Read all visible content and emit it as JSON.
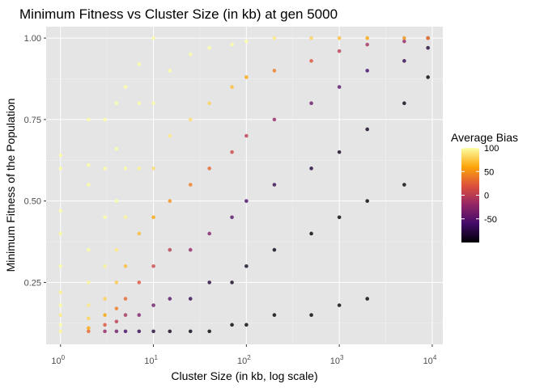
{
  "chart_data": {
    "type": "scatter",
    "title": "Minimum Fitness vs Cluster Size (in kb) at gen 5000",
    "xlabel": "Cluster Size (in kb, log scale)",
    "ylabel": "Minimum Fitness of the Population",
    "x_scale": "log10",
    "xlim": [
      0.7,
      13000
    ],
    "ylim": [
      0.06,
      1.035
    ],
    "x_ticks": [
      {
        "value": 1,
        "base": "10",
        "exp": "0"
      },
      {
        "value": 10,
        "base": "10",
        "exp": "1"
      },
      {
        "value": 100,
        "base": "10",
        "exp": "2"
      },
      {
        "value": 1000,
        "base": "10",
        "exp": "3"
      },
      {
        "value": 10000,
        "base": "10",
        "exp": "4"
      }
    ],
    "y_ticks": [
      {
        "value": 0.25,
        "label": "0.25"
      },
      {
        "value": 0.5,
        "label": "0.50"
      },
      {
        "value": 0.75,
        "label": "0.75"
      },
      {
        "value": 1.0,
        "label": "1.00"
      }
    ],
    "grid": true,
    "colorbar": {
      "title": "Average Bias",
      "min": -100,
      "max": 100,
      "ticks": [
        {
          "value": 100,
          "label": "100"
        },
        {
          "value": 50,
          "label": "50"
        },
        {
          "value": 0,
          "label": "0"
        },
        {
          "value": -50,
          "label": "-50"
        }
      ],
      "colors": [
        "#000004",
        "#420a68",
        "#932667",
        "#dd513a",
        "#fca50a",
        "#fcffa4"
      ],
      "placement": "right"
    },
    "point_color_note": "dense scatter; values below are a representative sample (x in kb, y fitness, c average bias)",
    "points": [
      [
        1,
        0.1,
        95
      ],
      [
        1,
        0.12,
        100
      ],
      [
        1,
        0.15,
        90
      ],
      [
        1,
        0.18,
        98
      ],
      [
        1,
        0.22,
        92
      ],
      [
        1,
        0.3,
        100
      ],
      [
        1,
        0.4,
        97
      ],
      [
        1,
        0.47,
        100
      ],
      [
        1,
        0.6,
        100
      ],
      [
        1,
        0.64,
        100
      ],
      [
        2,
        0.1,
        30
      ],
      [
        2,
        0.11,
        60
      ],
      [
        2,
        0.14,
        80
      ],
      [
        2,
        0.18,
        90
      ],
      [
        2,
        0.25,
        95
      ],
      [
        2,
        0.35,
        100
      ],
      [
        2,
        0.55,
        100
      ],
      [
        2,
        0.61,
        100
      ],
      [
        2,
        0.75,
        100
      ],
      [
        3,
        0.1,
        -20
      ],
      [
        3,
        0.12,
        20
      ],
      [
        3,
        0.15,
        60
      ],
      [
        3,
        0.2,
        80
      ],
      [
        3,
        0.3,
        95
      ],
      [
        3,
        0.45,
        100
      ],
      [
        3,
        0.6,
        100
      ],
      [
        3,
        0.75,
        100
      ],
      [
        4,
        0.1,
        -40
      ],
      [
        4,
        0.13,
        0
      ],
      [
        4,
        0.17,
        40
      ],
      [
        4,
        0.25,
        75
      ],
      [
        4,
        0.35,
        90
      ],
      [
        4,
        0.5,
        100
      ],
      [
        4,
        0.66,
        100
      ],
      [
        4,
        0.8,
        100
      ],
      [
        5,
        0.1,
        -60
      ],
      [
        5,
        0.15,
        -10
      ],
      [
        5,
        0.2,
        30
      ],
      [
        5,
        0.3,
        70
      ],
      [
        5,
        0.45,
        95
      ],
      [
        5,
        0.6,
        100
      ],
      [
        5,
        0.85,
        100
      ],
      [
        7,
        0.1,
        -70
      ],
      [
        7,
        0.15,
        -30
      ],
      [
        7,
        0.25,
        20
      ],
      [
        7,
        0.4,
        70
      ],
      [
        7,
        0.6,
        95
      ],
      [
        7,
        0.8,
        100
      ],
      [
        7,
        0.92,
        100
      ],
      [
        10,
        0.1,
        -80
      ],
      [
        10,
        0.18,
        -40
      ],
      [
        10,
        0.3,
        10
      ],
      [
        10,
        0.45,
        60
      ],
      [
        10,
        0.6,
        85
      ],
      [
        10,
        0.8,
        100
      ],
      [
        10,
        1.0,
        100
      ],
      [
        15,
        0.1,
        -90
      ],
      [
        15,
        0.2,
        -50
      ],
      [
        15,
        0.35,
        0
      ],
      [
        15,
        0.5,
        50
      ],
      [
        15,
        0.7,
        90
      ],
      [
        15,
        0.9,
        100
      ],
      [
        25,
        0.1,
        -95
      ],
      [
        25,
        0.2,
        -70
      ],
      [
        25,
        0.35,
        -20
      ],
      [
        25,
        0.55,
        40
      ],
      [
        25,
        0.75,
        85
      ],
      [
        25,
        0.95,
        100
      ],
      [
        40,
        0.1,
        -100
      ],
      [
        40,
        0.25,
        -80
      ],
      [
        40,
        0.4,
        -30
      ],
      [
        40,
        0.6,
        30
      ],
      [
        40,
        0.8,
        80
      ],
      [
        40,
        0.97,
        100
      ],
      [
        70,
        0.12,
        -100
      ],
      [
        70,
        0.25,
        -90
      ],
      [
        70,
        0.45,
        -50
      ],
      [
        70,
        0.65,
        10
      ],
      [
        70,
        0.85,
        70
      ],
      [
        70,
        0.98,
        100
      ],
      [
        100,
        0.12,
        -100
      ],
      [
        100,
        0.3,
        -90
      ],
      [
        100,
        0.5,
        -60
      ],
      [
        100,
        0.7,
        0
      ],
      [
        100,
        0.88,
        60
      ],
      [
        100,
        0.99,
        100
      ],
      [
        200,
        0.15,
        -100
      ],
      [
        200,
        0.35,
        -95
      ],
      [
        200,
        0.55,
        -70
      ],
      [
        200,
        0.75,
        -20
      ],
      [
        200,
        0.9,
        40
      ],
      [
        200,
        1.0,
        90
      ],
      [
        500,
        0.15,
        -100
      ],
      [
        500,
        0.4,
        -100
      ],
      [
        500,
        0.6,
        -80
      ],
      [
        500,
        0.8,
        -40
      ],
      [
        500,
        0.93,
        20
      ],
      [
        500,
        1.0,
        80
      ],
      [
        1000,
        0.18,
        -100
      ],
      [
        1000,
        0.45,
        -100
      ],
      [
        1000,
        0.65,
        -90
      ],
      [
        1000,
        0.85,
        -50
      ],
      [
        1000,
        0.96,
        0
      ],
      [
        1000,
        1.0,
        70
      ],
      [
        2000,
        0.2,
        -100
      ],
      [
        2000,
        0.5,
        -100
      ],
      [
        2000,
        0.72,
        -90
      ],
      [
        2000,
        0.9,
        -60
      ],
      [
        2000,
        0.98,
        -10
      ],
      [
        2000,
        1.0,
        60
      ],
      [
        5000,
        0.55,
        -100
      ],
      [
        5000,
        0.8,
        -95
      ],
      [
        5000,
        0.93,
        -70
      ],
      [
        5000,
        0.99,
        -20
      ],
      [
        5000,
        1.0,
        50
      ],
      [
        9000,
        0.88,
        -100
      ],
      [
        9000,
        0.97,
        -80
      ],
      [
        9000,
        1.0,
        -20
      ],
      [
        9000,
        1.0,
        40
      ]
    ]
  }
}
